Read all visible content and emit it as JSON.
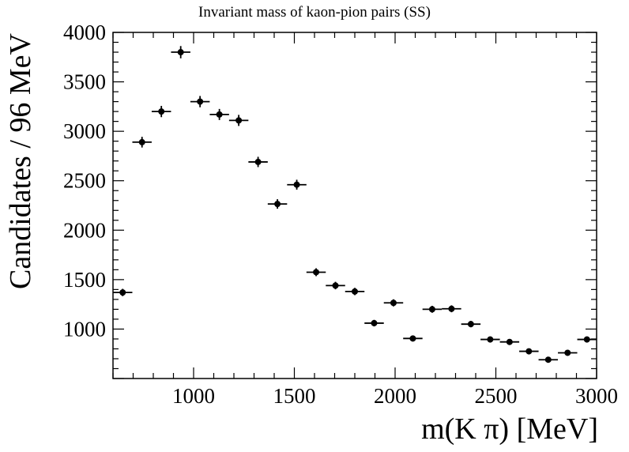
{
  "chart_data": {
    "type": "scatter",
    "title": "Invariant mass of kaon-pion pairs (SS)",
    "xlabel": "m(K π) [MeV]",
    "ylabel": "Candidates / 96 MeV",
    "xlim": [
      600,
      3000
    ],
    "ylim": [
      500,
      4000
    ],
    "bin_width": 96,
    "grid": false,
    "legend": "none",
    "x_ticks": [
      1000,
      1500,
      2000,
      2500,
      3000
    ],
    "y_ticks": [
      1000,
      1500,
      2000,
      2500,
      3000,
      3500,
      4000
    ],
    "colors": {
      "marker": "#000000",
      "frame": "#000000"
    },
    "series": [
      {
        "x": [
          648,
          744,
          840,
          936,
          1032,
          1128,
          1224,
          1320,
          1416,
          1512,
          1608,
          1704,
          1800,
          1896,
          1992,
          2088,
          2184,
          2280,
          2376,
          2472,
          2568,
          2664,
          2760,
          2856,
          2952
        ],
        "y": [
          1370,
          2890,
          3200,
          3800,
          3300,
          3170,
          3110,
          2690,
          2265,
          2460,
          1575,
          1440,
          1380,
          1060,
          1265,
          905,
          1200,
          1205,
          1050,
          895,
          870,
          775,
          690,
          760,
          895
        ],
        "yerr": [
          37,
          54,
          57,
          62,
          57,
          56,
          56,
          52,
          48,
          50,
          40,
          38,
          37,
          33,
          36,
          30,
          35,
          35,
          32,
          30,
          29,
          28,
          26,
          28,
          30
        ]
      }
    ]
  }
}
